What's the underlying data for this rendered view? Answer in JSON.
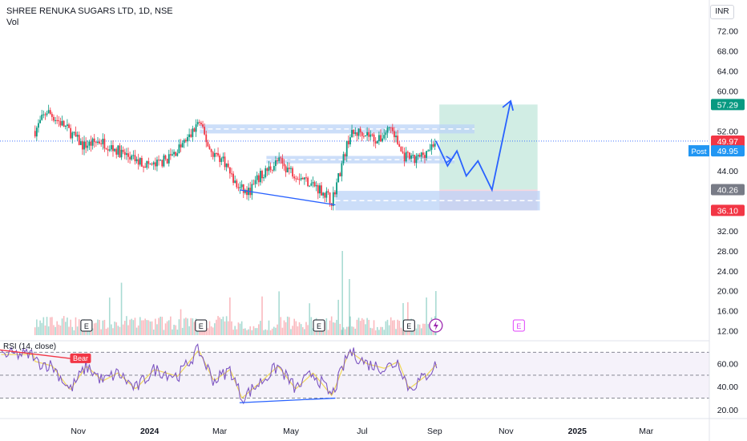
{
  "header": {
    "title": "SHREE RENUKA SUGARS LTD, 1D, NSE",
    "volume_label": "Vol"
  },
  "currency": "INR",
  "price_axis": {
    "ticks": [
      72,
      68,
      64,
      60,
      52,
      44,
      32,
      28,
      24,
      20,
      16,
      12
    ],
    "range": [
      10,
      75
    ]
  },
  "rsi_axis": {
    "ticks": [
      60,
      40,
      20
    ],
    "range": [
      15,
      80
    ]
  },
  "time_axis": {
    "labels": [
      "Nov",
      "2024",
      "Mar",
      "May",
      "Jul",
      "Sep",
      "Nov",
      "2025",
      "Mar"
    ]
  },
  "price_labels": [
    {
      "text": "57.29",
      "color": "#089981"
    },
    {
      "text": "49.97",
      "color": "#f23645"
    },
    {
      "text": "49.95",
      "color": "#2196f3",
      "tag": "Post"
    },
    {
      "text": "40.26",
      "color": "#787b86"
    },
    {
      "text": "36.10",
      "color": "#f23645"
    }
  ],
  "rsi": {
    "label": "RSI (14, close)",
    "bear_label": "Bear",
    "upper": 70,
    "middle": 50,
    "lower": 30
  },
  "earnings_marker": "E",
  "colors": {
    "up": "#089981",
    "down": "#f23645",
    "drawing": "#2962ff",
    "zone": "#bbd3f7",
    "target": "#d1ede4",
    "stop": "#f6d6df",
    "rsi_line": "#7e57c2",
    "rsi_ma": "#f0d85a"
  },
  "chart_data": {
    "type": "candlestick",
    "title": "SHREE RENUKA SUGARS LTD, 1D, NSE",
    "price_range": [
      10,
      75
    ],
    "last_price": 49.97,
    "post_market_price": 49.95,
    "position": {
      "entry": 40.26,
      "target": 57.29,
      "stop": 36.1
    },
    "price_path": [
      [
        "2023-09-25",
        52
      ],
      [
        "2023-10-05",
        56
      ],
      [
        "2023-10-20",
        53
      ],
      [
        "2023-11-05",
        49
      ],
      [
        "2023-11-20",
        50
      ],
      [
        "2023-12-05",
        48
      ],
      [
        "2023-12-20",
        46
      ],
      [
        "2024-01-05",
        45
      ],
      [
        "2024-01-20",
        47
      ],
      [
        "2024-02-05",
        51
      ],
      [
        "2024-02-12",
        54
      ],
      [
        "2024-02-22",
        48
      ],
      [
        "2024-03-05",
        46
      ],
      [
        "2024-03-15",
        41
      ],
      [
        "2024-03-25",
        39.5
      ],
      [
        "2024-04-05",
        43
      ],
      [
        "2024-04-20",
        46
      ],
      [
        "2024-05-01",
        44
      ],
      [
        "2024-05-15",
        42
      ],
      [
        "2024-05-28",
        40
      ],
      [
        "2024-06-05",
        38
      ],
      [
        "2024-06-12",
        44
      ],
      [
        "2024-06-20",
        51
      ],
      [
        "2024-07-01",
        52
      ],
      [
        "2024-07-15",
        50
      ],
      [
        "2024-07-25",
        53
      ],
      [
        "2024-08-05",
        47
      ],
      [
        "2024-08-15",
        46
      ],
      [
        "2024-08-25",
        48
      ],
      [
        "2024-09-02",
        49.97
      ]
    ],
    "projection": [
      [
        "2024-09-02",
        50
      ],
      [
        "2024-09-12",
        45
      ],
      [
        "2024-09-20",
        48
      ],
      [
        "2024-09-28",
        43
      ],
      [
        "2024-10-08",
        46
      ],
      [
        "2024-10-20",
        40.2
      ],
      [
        "2024-11-05",
        58
      ],
      [
        "2024-11-03",
        56.5
      ]
    ],
    "zones": [
      {
        "from": "2024-02-13",
        "to": "2024-10-05",
        "low": 51.5,
        "high": 53.3
      },
      {
        "from": "2024-04-10",
        "to": "2024-09-18",
        "low": 45.5,
        "high": 47
      },
      {
        "from": "2024-06-08",
        "to": "2024-11-30",
        "low": 36.1,
        "high": 40
      }
    ],
    "trendline_price": [
      [
        "2024-03-18",
        40.2
      ],
      [
        "2024-06-08",
        37.2
      ]
    ],
    "rsi_values": [
      [
        "2023-09-25",
        62
      ],
      [
        "2023-10-10",
        58
      ],
      [
        "2023-10-25",
        37
      ],
      [
        "2023-11-08",
        58
      ],
      [
        "2023-11-22",
        45
      ],
      [
        "2023-12-05",
        52
      ],
      [
        "2023-12-20",
        38
      ],
      [
        "2024-01-05",
        55
      ],
      [
        "2024-01-25",
        49
      ],
      [
        "2024-02-12",
        72
      ],
      [
        "2024-02-25",
        45
      ],
      [
        "2024-03-10",
        55
      ],
      [
        "2024-03-20",
        30
      ],
      [
        "2024-04-05",
        44
      ],
      [
        "2024-04-20",
        58
      ],
      [
        "2024-05-05",
        38
      ],
      [
        "2024-05-20",
        52
      ],
      [
        "2024-06-05",
        32
      ],
      [
        "2024-06-20",
        71
      ],
      [
        "2024-07-05",
        60
      ],
      [
        "2024-07-20",
        56
      ],
      [
        "2024-08-01",
        62
      ],
      [
        "2024-08-10",
        38
      ],
      [
        "2024-08-25",
        50
      ],
      [
        "2024-09-03",
        60
      ]
    ],
    "trendline_rsi": [
      [
        "2024-03-18",
        26
      ],
      [
        "2024-06-08",
        30
      ]
    ],
    "earnings_dates": [
      "2023-11-08",
      "2024-02-14",
      "2024-05-25",
      "2024-08-10",
      "2024-11-12"
    ]
  }
}
